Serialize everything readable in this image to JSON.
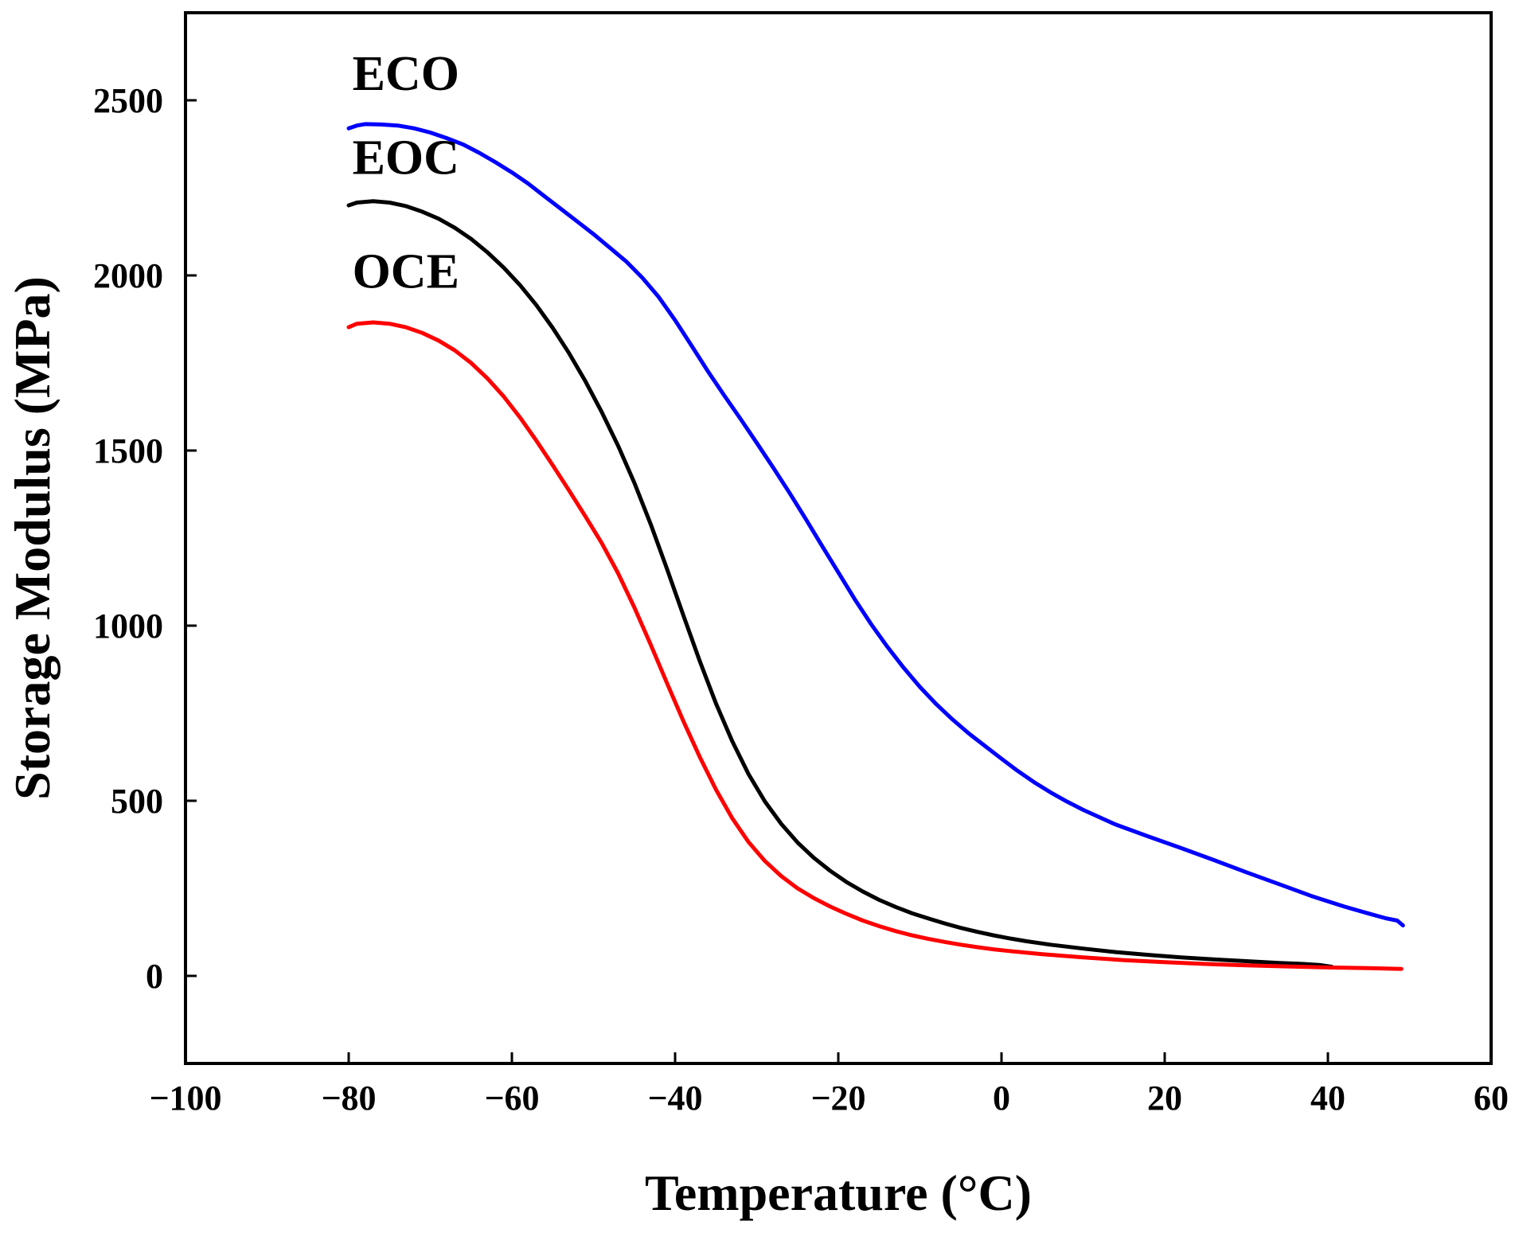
{
  "chart_data": {
    "type": "line",
    "title": "",
    "xlabel": "Temperature (°C)",
    "ylabel": "Storage Modulus (MPa)",
    "xlim": [
      -100,
      60
    ],
    "ylim": [
      -250,
      2750
    ],
    "xticks": [
      -100,
      -80,
      -60,
      -40,
      -20,
      0,
      20,
      40,
      60
    ],
    "xtick_labels": [
      "−100",
      "−80",
      "−60",
      "−40",
      "−20",
      "0",
      "20",
      "40",
      "60"
    ],
    "yticks": [
      0,
      500,
      1000,
      1500,
      2000,
      2500
    ],
    "ytick_labels": [
      "0",
      "500",
      "1000",
      "1500",
      "2000",
      "2500"
    ],
    "grid": false,
    "legend": "inline labels at curve starts",
    "series": [
      {
        "name": "ECO",
        "color": "#0000ff",
        "label_at": [
          -73,
          2530
        ],
        "points": [
          [
            -80,
            2420
          ],
          [
            -79,
            2428
          ],
          [
            -78,
            2432
          ],
          [
            -76,
            2431
          ],
          [
            -74,
            2428
          ],
          [
            -72,
            2420
          ],
          [
            -70,
            2408
          ],
          [
            -68,
            2392
          ],
          [
            -66,
            2374
          ],
          [
            -64,
            2350
          ],
          [
            -62,
            2323
          ],
          [
            -60,
            2294
          ],
          [
            -58,
            2262
          ],
          [
            -56,
            2226
          ],
          [
            -54,
            2190
          ],
          [
            -52,
            2154
          ],
          [
            -50,
            2118
          ],
          [
            -48,
            2079
          ],
          [
            -46,
            2040
          ],
          [
            -44,
            1993
          ],
          [
            -42,
            1938
          ],
          [
            -40,
            1872
          ],
          [
            -38,
            1800
          ],
          [
            -36,
            1727
          ],
          [
            -34,
            1658
          ],
          [
            -32,
            1591
          ],
          [
            -30,
            1522
          ],
          [
            -28,
            1452
          ],
          [
            -26,
            1380
          ],
          [
            -24,
            1305
          ],
          [
            -22,
            1228
          ],
          [
            -20,
            1152
          ],
          [
            -18,
            1076
          ],
          [
            -16,
            1005
          ],
          [
            -14,
            940
          ],
          [
            -12,
            880
          ],
          [
            -10,
            825
          ],
          [
            -8,
            776
          ],
          [
            -6,
            732
          ],
          [
            -4,
            692
          ],
          [
            -2,
            656
          ],
          [
            0,
            620
          ],
          [
            2,
            585
          ],
          [
            4,
            553
          ],
          [
            6,
            524
          ],
          [
            8,
            498
          ],
          [
            10,
            474
          ],
          [
            14,
            432
          ],
          [
            18,
            398
          ],
          [
            22,
            365
          ],
          [
            26,
            331
          ],
          [
            30,
            296
          ],
          [
            34,
            262
          ],
          [
            38,
            228
          ],
          [
            42,
            198
          ],
          [
            45,
            178
          ],
          [
            47,
            165
          ],
          [
            48.5,
            158
          ],
          [
            49.2,
            144
          ]
        ]
      },
      {
        "name": "EOC",
        "color": "#000000",
        "label_at": [
          -73,
          2290
        ],
        "points": [
          [
            -80,
            2200
          ],
          [
            -79,
            2208
          ],
          [
            -77,
            2212
          ],
          [
            -75,
            2208
          ],
          [
            -73,
            2198
          ],
          [
            -71,
            2182
          ],
          [
            -69,
            2162
          ],
          [
            -67,
            2136
          ],
          [
            -65,
            2104
          ],
          [
            -63,
            2066
          ],
          [
            -61,
            2022
          ],
          [
            -59,
            1972
          ],
          [
            -57,
            1915
          ],
          [
            -55,
            1850
          ],
          [
            -53,
            1778
          ],
          [
            -51,
            1698
          ],
          [
            -49,
            1610
          ],
          [
            -47,
            1514
          ],
          [
            -45,
            1408
          ],
          [
            -43,
            1290
          ],
          [
            -41,
            1162
          ],
          [
            -39,
            1030
          ],
          [
            -37,
            900
          ],
          [
            -35,
            778
          ],
          [
            -33,
            670
          ],
          [
            -31,
            576
          ],
          [
            -29,
            498
          ],
          [
            -27,
            434
          ],
          [
            -25,
            381
          ],
          [
            -23,
            337
          ],
          [
            -21,
            300
          ],
          [
            -19,
            268
          ],
          [
            -17,
            241
          ],
          [
            -15,
            217
          ],
          [
            -13,
            197
          ],
          [
            -11,
            179
          ],
          [
            -9,
            164
          ],
          [
            -7,
            150
          ],
          [
            -5,
            137
          ],
          [
            -3,
            126
          ],
          [
            -1,
            116
          ],
          [
            1,
            107
          ],
          [
            3,
            99
          ],
          [
            6,
            89
          ],
          [
            10,
            78
          ],
          [
            14,
            68
          ],
          [
            18,
            60
          ],
          [
            22,
            53
          ],
          [
            26,
            47
          ],
          [
            30,
            42
          ],
          [
            34,
            37
          ],
          [
            37,
            34
          ],
          [
            39,
            31
          ],
          [
            40.5,
            26
          ]
        ]
      },
      {
        "name": "OCE",
        "color": "#ff0000",
        "label_at": [
          -73,
          1965
        ],
        "points": [
          [
            -80,
            1852
          ],
          [
            -79,
            1862
          ],
          [
            -77,
            1866
          ],
          [
            -75,
            1862
          ],
          [
            -73,
            1852
          ],
          [
            -71,
            1836
          ],
          [
            -69,
            1814
          ],
          [
            -67,
            1786
          ],
          [
            -65,
            1750
          ],
          [
            -63,
            1706
          ],
          [
            -61,
            1654
          ],
          [
            -59,
            1594
          ],
          [
            -57,
            1528
          ],
          [
            -55,
            1458
          ],
          [
            -53,
            1386
          ],
          [
            -51,
            1312
          ],
          [
            -49,
            1236
          ],
          [
            -47,
            1150
          ],
          [
            -45,
            1052
          ],
          [
            -43,
            946
          ],
          [
            -41,
            836
          ],
          [
            -39,
            728
          ],
          [
            -37,
            626
          ],
          [
            -35,
            532
          ],
          [
            -33,
            450
          ],
          [
            -31,
            382
          ],
          [
            -29,
            328
          ],
          [
            -27,
            285
          ],
          [
            -25,
            250
          ],
          [
            -23,
            222
          ],
          [
            -21,
            198
          ],
          [
            -19,
            177
          ],
          [
            -17,
            158
          ],
          [
            -15,
            142
          ],
          [
            -13,
            128
          ],
          [
            -11,
            116
          ],
          [
            -9,
            106
          ],
          [
            -7,
            97
          ],
          [
            -5,
            89
          ],
          [
            -3,
            82
          ],
          [
            -1,
            76
          ],
          [
            1,
            71
          ],
          [
            5,
            62
          ],
          [
            10,
            53
          ],
          [
            15,
            45
          ],
          [
            20,
            39
          ],
          [
            25,
            34
          ],
          [
            30,
            30
          ],
          [
            35,
            27
          ],
          [
            40,
            24
          ],
          [
            45,
            22
          ],
          [
            49,
            20
          ]
        ]
      }
    ]
  }
}
